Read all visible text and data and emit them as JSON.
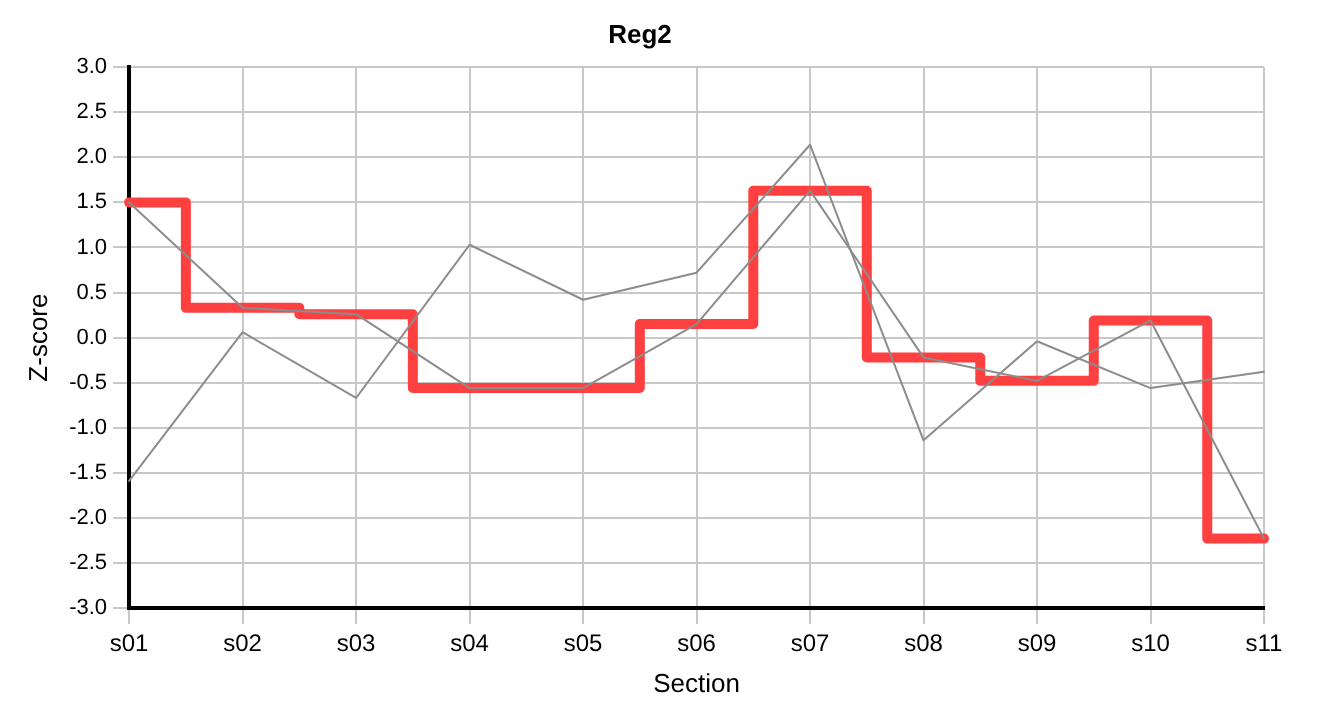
{
  "chart_data": {
    "type": "line",
    "title": "Reg2",
    "xlabel": "Section",
    "ylabel": "Z-score",
    "categories": [
      "s01",
      "s02",
      "s03",
      "s04",
      "s05",
      "s06",
      "s07",
      "s08",
      "s09",
      "s10",
      "s11"
    ],
    "series": [
      {
        "color": "#8c8c8c",
        "values": [
          1.5,
          0.33,
          0.26,
          -0.56,
          -0.56,
          0.15,
          1.63,
          -0.22,
          -0.48,
          0.19,
          -2.23
        ]
      },
      {
        "color": "#8c8c8c",
        "values": [
          -1.59,
          0.06,
          -0.67,
          1.03,
          0.42,
          0.72,
          2.14,
          -1.14,
          -0.04,
          -0.56,
          -0.38
        ]
      },
      {
        "type": "step",
        "color": "#ff4040",
        "values": [
          1.5,
          0.33,
          0.26,
          -0.56,
          -0.56,
          0.15,
          1.63,
          -0.22,
          -0.48,
          0.19,
          -2.23
        ]
      }
    ],
    "ylim": [
      -3,
      3
    ],
    "yticks": [
      {
        "value": -3,
        "label": "-3.0"
      },
      {
        "value": -2.5,
        "label": "-2.5"
      },
      {
        "value": -2,
        "label": "-2.0"
      },
      {
        "value": -1.5,
        "label": "-1.5"
      },
      {
        "value": -1,
        "label": "-1.0"
      },
      {
        "value": -0.5,
        "label": "-0.5"
      },
      {
        "value": 0,
        "label": "0.0"
      },
      {
        "value": 0.5,
        "label": "0.5"
      },
      {
        "value": 1,
        "label": "1.0"
      },
      {
        "value": 1.5,
        "label": "1.5"
      },
      {
        "value": 2,
        "label": "2.0"
      },
      {
        "value": 2.5,
        "label": "2.5"
      },
      {
        "value": 3,
        "label": "3.0"
      }
    ],
    "grid": true,
    "legend": false,
    "marker": "none",
    "line_style": "solid"
  }
}
